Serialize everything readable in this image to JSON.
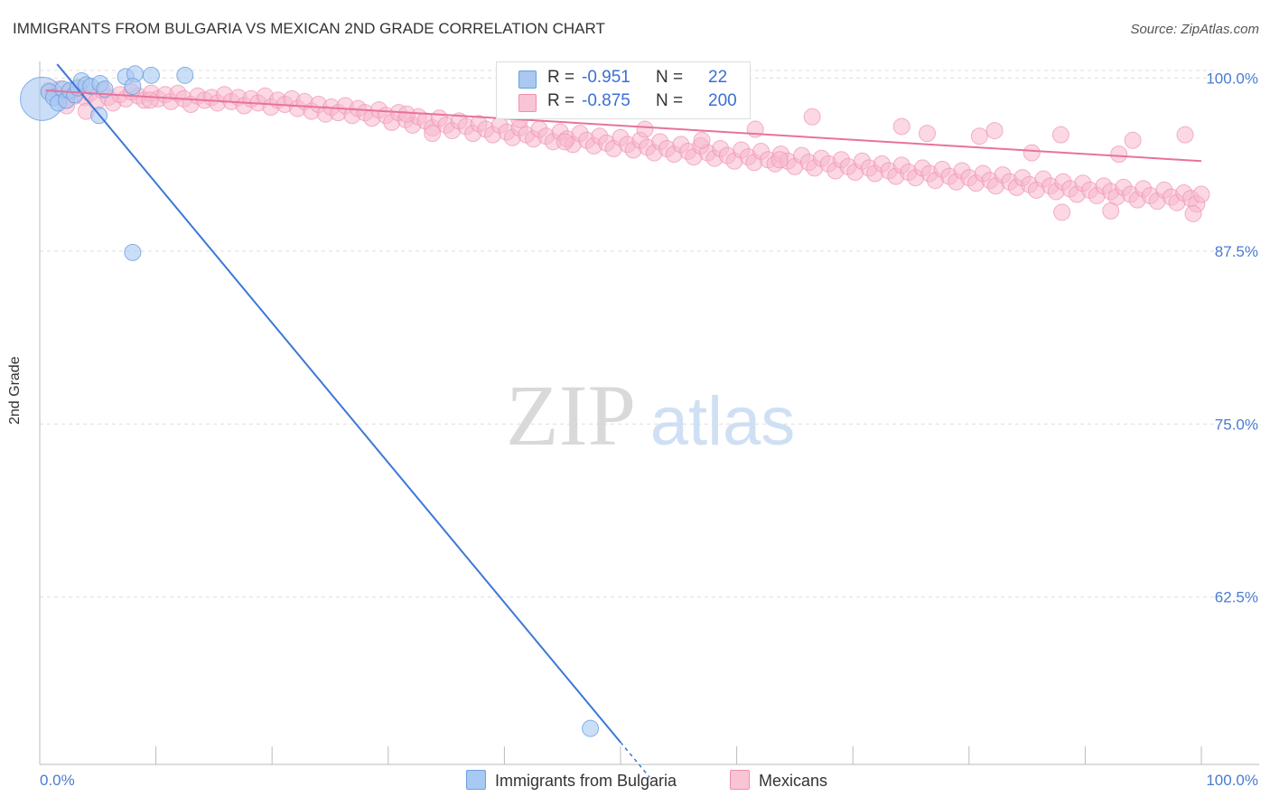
{
  "title": "IMMIGRANTS FROM BULGARIA VS MEXICAN 2ND GRADE CORRELATION CHART",
  "source": "Source: ZipAtlas.com",
  "watermark": {
    "zip": "ZIP",
    "atlas": "atlas"
  },
  "legend_box": {
    "rows": [
      {
        "r_label": "R =",
        "r_value": "-0.951",
        "n_label": "N =",
        "n_value": "22",
        "swatch_fill": "#a9c8f2",
        "swatch_stroke": "#6a9fe0"
      },
      {
        "r_label": "R =",
        "r_value": "-0.875",
        "n_label": "N =",
        "n_value": "200",
        "swatch_fill": "#f9c4d4",
        "swatch_stroke": "#ef8fae"
      }
    ]
  },
  "bottom_legend": [
    {
      "label": "Immigrants from Bulgaria",
      "color": "#a9c8f2",
      "stroke": "#6a9fe0"
    },
    {
      "label": "Mexicans",
      "color": "#f9c4d4",
      "stroke": "#ef8fae"
    }
  ],
  "colors": {
    "blue_line": "#3b78d8",
    "blue_point": "#a9c8f2",
    "blue_point_stroke": "#6a9fe0",
    "pink_line": "#e8729b",
    "pink_point": "#f7b8cc",
    "pink_point_stroke": "#ee93b2",
    "tick_label": "#4a7bd0",
    "grid": "#dddddd"
  },
  "chart_data": {
    "type": "scatter",
    "title": "IMMIGRANTS FROM BULGARIA VS MEXICAN 2ND GRADE CORRELATION CHART",
    "xlabel": "",
    "ylabel": "2nd Grade",
    "xlim": [
      0,
      100
    ],
    "ylim": [
      50.4,
      101.2
    ],
    "x_tick_labels": [
      "0.0%",
      "100.0%"
    ],
    "y_ticks": [
      100.0,
      87.5,
      75.0,
      62.5
    ],
    "y_tick_labels": [
      "100.0%",
      "87.5%",
      "75.0%",
      "62.5%"
    ],
    "grid": true,
    "legend_position": "top-center",
    "series": [
      {
        "name": "Immigrants from Bulgaria",
        "r": -0.951,
        "n": 22,
        "trend": {
          "x0": 1.5,
          "y0": 101.0,
          "x1": 50.0,
          "y1": 52.0,
          "dashed_to_x": 52.5
        },
        "points": [
          [
            0.2,
            98.5,
            24
          ],
          [
            0.8,
            99.0,
            9
          ],
          [
            1.2,
            98.6,
            9
          ],
          [
            1.6,
            98.2,
            9
          ],
          [
            2.0,
            99.2,
            9
          ],
          [
            2.3,
            98.4,
            9
          ],
          [
            2.6,
            99.1,
            9
          ],
          [
            3.0,
            98.8,
            9
          ],
          [
            3.3,
            99.3,
            9
          ],
          [
            3.6,
            99.8,
            9
          ],
          [
            4.0,
            99.5,
            9
          ],
          [
            4.4,
            99.4,
            9
          ],
          [
            5.2,
            99.6,
            9
          ],
          [
            5.6,
            99.2,
            9
          ],
          [
            5.1,
            97.3,
            9
          ],
          [
            7.4,
            100.1,
            9
          ],
          [
            8.2,
            100.3,
            9
          ],
          [
            9.6,
            100.2,
            9
          ],
          [
            12.5,
            100.2,
            9
          ],
          [
            8.0,
            99.4,
            9
          ],
          [
            8.0,
            87.4,
            9
          ],
          [
            47.4,
            53.0,
            9
          ]
        ]
      },
      {
        "name": "Mexicans",
        "r": -0.875,
        "n": 200,
        "trend": {
          "x0": 0.5,
          "y0": 99.1,
          "x1": 100.0,
          "y1": 94.0
        },
        "points": [
          [
            0.8,
            99.1
          ],
          [
            1.2,
            98.8
          ],
          [
            1.7,
            99.2
          ],
          [
            2.1,
            98.5
          ],
          [
            2.6,
            99.0
          ],
          [
            3.0,
            98.7
          ],
          [
            3.4,
            99.3
          ],
          [
            3.9,
            98.6
          ],
          [
            4.3,
            98.9
          ],
          [
            4.9,
            98.3
          ],
          [
            5.4,
            99.1
          ],
          [
            5.9,
            98.6
          ],
          [
            6.3,
            98.2
          ],
          [
            6.9,
            98.8
          ],
          [
            7.4,
            98.5
          ],
          [
            7.9,
            99.0
          ],
          [
            8.5,
            98.7
          ],
          [
            9.0,
            98.4
          ],
          [
            9.6,
            98.9
          ],
          [
            10.2,
            98.5
          ],
          [
            10.8,
            98.8
          ],
          [
            11.3,
            98.3
          ],
          [
            11.9,
            98.9
          ],
          [
            12.4,
            98.5
          ],
          [
            13.0,
            98.1
          ],
          [
            13.6,
            98.7
          ],
          [
            14.2,
            98.4
          ],
          [
            14.8,
            98.6
          ],
          [
            15.3,
            98.2
          ],
          [
            15.9,
            98.8
          ],
          [
            16.5,
            98.3
          ],
          [
            17.1,
            98.6
          ],
          [
            17.6,
            98.0
          ],
          [
            18.2,
            98.5
          ],
          [
            18.8,
            98.2
          ],
          [
            19.4,
            98.7
          ],
          [
            19.9,
            97.9
          ],
          [
            20.5,
            98.4
          ],
          [
            21.1,
            98.1
          ],
          [
            21.7,
            98.5
          ],
          [
            22.2,
            97.8
          ],
          [
            22.8,
            98.3
          ],
          [
            23.4,
            97.6
          ],
          [
            24.0,
            98.1
          ],
          [
            24.6,
            97.4
          ],
          [
            25.1,
            97.9
          ],
          [
            25.7,
            97.5
          ],
          [
            26.3,
            98.0
          ],
          [
            26.9,
            97.3
          ],
          [
            27.4,
            97.8
          ],
          [
            28.0,
            97.5
          ],
          [
            28.6,
            97.1
          ],
          [
            29.2,
            97.7
          ],
          [
            29.8,
            97.3
          ],
          [
            30.3,
            96.8
          ],
          [
            30.9,
            97.5
          ],
          [
            31.5,
            97.0
          ],
          [
            32.1,
            96.6
          ],
          [
            32.6,
            97.2
          ],
          [
            33.2,
            96.9
          ],
          [
            33.8,
            96.4
          ],
          [
            34.4,
            97.1
          ],
          [
            35.0,
            96.6
          ],
          [
            35.5,
            96.2
          ],
          [
            36.1,
            96.9
          ],
          [
            36.7,
            96.5
          ],
          [
            37.3,
            96.0
          ],
          [
            37.8,
            96.7
          ],
          [
            38.4,
            96.3
          ],
          [
            39.0,
            95.9
          ],
          [
            39.6,
            96.6
          ],
          [
            40.2,
            96.1
          ],
          [
            40.7,
            95.7
          ],
          [
            41.3,
            96.4
          ],
          [
            41.9,
            95.9
          ],
          [
            42.5,
            95.6
          ],
          [
            43.0,
            96.3
          ],
          [
            43.6,
            95.8
          ],
          [
            44.2,
            95.4
          ],
          [
            44.8,
            96.1
          ],
          [
            45.4,
            95.6
          ],
          [
            45.9,
            95.2
          ],
          [
            46.5,
            96.0
          ],
          [
            47.1,
            95.5
          ],
          [
            47.7,
            95.1
          ],
          [
            48.2,
            95.8
          ],
          [
            48.8,
            95.3
          ],
          [
            49.4,
            94.9
          ],
          [
            50.0,
            95.7
          ],
          [
            50.6,
            95.2
          ],
          [
            51.1,
            94.8
          ],
          [
            51.7,
            95.5
          ],
          [
            52.3,
            95.0
          ],
          [
            52.9,
            94.6
          ],
          [
            53.4,
            95.4
          ],
          [
            54.0,
            94.9
          ],
          [
            54.6,
            94.5
          ],
          [
            55.2,
            95.2
          ],
          [
            55.8,
            94.7
          ],
          [
            56.3,
            94.3
          ],
          [
            56.9,
            95.1
          ],
          [
            57.5,
            94.6
          ],
          [
            58.1,
            94.2
          ],
          [
            58.6,
            94.9
          ],
          [
            59.2,
            94.4
          ],
          [
            59.8,
            94.0
          ],
          [
            60.4,
            94.8
          ],
          [
            61.0,
            94.3
          ],
          [
            61.5,
            93.9
          ],
          [
            62.1,
            94.7
          ],
          [
            62.7,
            94.1
          ],
          [
            63.3,
            93.8
          ],
          [
            63.8,
            94.5
          ],
          [
            64.4,
            94.0
          ],
          [
            65.0,
            93.6
          ],
          [
            65.6,
            94.4
          ],
          [
            66.2,
            93.9
          ],
          [
            66.7,
            93.5
          ],
          [
            67.3,
            94.2
          ],
          [
            67.9,
            93.8
          ],
          [
            68.5,
            93.3
          ],
          [
            69.0,
            94.1
          ],
          [
            69.6,
            93.6
          ],
          [
            70.2,
            93.2
          ],
          [
            70.8,
            94.0
          ],
          [
            71.4,
            93.5
          ],
          [
            71.9,
            93.1
          ],
          [
            72.5,
            93.8
          ],
          [
            73.1,
            93.3
          ],
          [
            73.7,
            92.9
          ],
          [
            74.2,
            93.7
          ],
          [
            74.8,
            93.2
          ],
          [
            75.4,
            92.8
          ],
          [
            76.0,
            93.5
          ],
          [
            76.6,
            93.1
          ],
          [
            77.1,
            92.6
          ],
          [
            77.7,
            93.4
          ],
          [
            78.3,
            92.9
          ],
          [
            78.9,
            92.5
          ],
          [
            79.4,
            93.3
          ],
          [
            80.0,
            92.8
          ],
          [
            80.6,
            92.4
          ],
          [
            81.2,
            93.1
          ],
          [
            81.8,
            92.6
          ],
          [
            82.3,
            92.2
          ],
          [
            82.9,
            93.0
          ],
          [
            83.5,
            92.5
          ],
          [
            84.1,
            92.1
          ],
          [
            84.6,
            92.8
          ],
          [
            85.2,
            92.3
          ],
          [
            85.8,
            91.9
          ],
          [
            86.4,
            92.7
          ],
          [
            87.0,
            92.2
          ],
          [
            87.5,
            91.8
          ],
          [
            88.1,
            92.5
          ],
          [
            88.7,
            92.0
          ],
          [
            89.3,
            91.6
          ],
          [
            89.8,
            92.4
          ],
          [
            90.4,
            91.9
          ],
          [
            91.0,
            91.5
          ],
          [
            91.6,
            92.2
          ],
          [
            92.2,
            91.8
          ],
          [
            92.7,
            91.4
          ],
          [
            93.3,
            92.1
          ],
          [
            93.9,
            91.6
          ],
          [
            94.5,
            91.2
          ],
          [
            95.0,
            92.0
          ],
          [
            95.6,
            91.5
          ],
          [
            96.2,
            91.1
          ],
          [
            96.8,
            91.9
          ],
          [
            97.4,
            91.4
          ],
          [
            97.9,
            91.0
          ],
          [
            98.5,
            91.7
          ],
          [
            99.1,
            91.3
          ],
          [
            99.6,
            90.9
          ],
          [
            100.0,
            91.6
          ],
          [
            4.0,
            97.6
          ],
          [
            31.6,
            97.4
          ],
          [
            66.5,
            97.2
          ],
          [
            76.4,
            96.0
          ],
          [
            80.9,
            95.8
          ],
          [
            87.9,
            95.9
          ],
          [
            94.1,
            95.5
          ],
          [
            98.6,
            95.9
          ],
          [
            88.0,
            90.3
          ],
          [
            92.2,
            90.4
          ],
          [
            99.3,
            90.2
          ],
          [
            57.0,
            95.5
          ],
          [
            61.6,
            96.3
          ],
          [
            74.2,
            96.5
          ],
          [
            82.2,
            96.2
          ],
          [
            85.4,
            94.6
          ],
          [
            92.9,
            94.5
          ],
          [
            33.8,
            96.0
          ],
          [
            41.3,
            97.0
          ],
          [
            9.5,
            98.4
          ],
          [
            2.3,
            98.0
          ],
          [
            45.2,
            95.4
          ],
          [
            52.1,
            96.3
          ],
          [
            63.7,
            94.1
          ]
        ]
      }
    ]
  }
}
